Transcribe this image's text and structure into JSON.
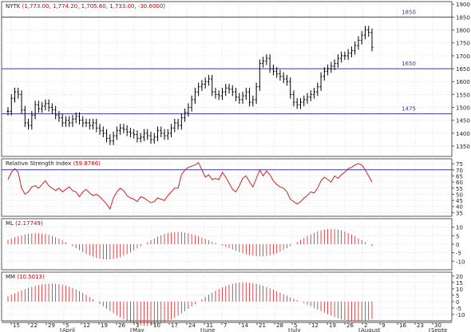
{
  "chart_data": [
    {
      "type": "bar",
      "panel": "price",
      "title_symbol": "NYTK",
      "title_values": "(1,773.00, 1,774.20, 1,705.60, 1,733.00, -30.6000)",
      "ylim": [
        1310,
        1910
      ],
      "yticks": [
        1350,
        1400,
        1450,
        1500,
        1550,
        1600,
        1650,
        1700,
        1750,
        1800,
        1850,
        1900
      ],
      "hlines": [
        {
          "value": 1850,
          "label": "1850"
        },
        {
          "value": 1650,
          "label": "1650"
        },
        {
          "value": 1475,
          "label": "1475"
        }
      ],
      "x": [
        0,
        1,
        2,
        3,
        4,
        5,
        6,
        7,
        8,
        9,
        10,
        11,
        12,
        13,
        14,
        15,
        16,
        17,
        18,
        19,
        20,
        21,
        22,
        23,
        24,
        25,
        26,
        27,
        28,
        29,
        30,
        31,
        32,
        33,
        34,
        35,
        36,
        37,
        38,
        39,
        40,
        41,
        42,
        43,
        44,
        45,
        46,
        47,
        48,
        49,
        50,
        51,
        52,
        53,
        54,
        55,
        56,
        57,
        58,
        59,
        60,
        61,
        62,
        63,
        64,
        65,
        66,
        67,
        68,
        69,
        70,
        71,
        72,
        73,
        74,
        75,
        76,
        77,
        78,
        79,
        80,
        81,
        82,
        83,
        84,
        85,
        86,
        87,
        88,
        89,
        90,
        91,
        92,
        93,
        94,
        95,
        96,
        97,
        98,
        99,
        100,
        101,
        102,
        103,
        104,
        105,
        106,
        107
      ],
      "close": [
        1485,
        1535,
        1560,
        1550,
        1490,
        1440,
        1430,
        1470,
        1510,
        1495,
        1505,
        1515,
        1500,
        1490,
        1470,
        1460,
        1440,
        1450,
        1440,
        1455,
        1465,
        1450,
        1440,
        1440,
        1430,
        1440,
        1420,
        1410,
        1400,
        1380,
        1370,
        1390,
        1410,
        1420,
        1415,
        1405,
        1400,
        1395,
        1380,
        1385,
        1400,
        1390,
        1375,
        1385,
        1410,
        1400,
        1390,
        1400,
        1420,
        1440,
        1430,
        1460,
        1480,
        1500,
        1530,
        1560,
        1580,
        1590,
        1600,
        1610,
        1560,
        1550,
        1545,
        1560,
        1575,
        1570,
        1560,
        1540,
        1530,
        1545,
        1560,
        1520,
        1530,
        1580,
        1670,
        1680,
        1690,
        1650,
        1640,
        1630,
        1620,
        1610,
        1600,
        1550,
        1520,
        1510,
        1520,
        1530,
        1540,
        1550,
        1560,
        1580,
        1620,
        1640,
        1650,
        1660,
        1670,
        1690,
        1700,
        1700,
        1710,
        1720,
        1740,
        1760,
        1780,
        1800,
        1790,
        1733
      ],
      "range": 40
    },
    {
      "type": "line",
      "panel": "rsi",
      "title": "Relative Strength Index",
      "value_label": "(59.8786)",
      "ylim": [
        32,
        79
      ],
      "yticks": [
        35,
        40,
        45,
        50,
        55,
        60,
        65,
        70,
        75
      ],
      "hline": 70,
      "values": [
        62,
        68,
        71,
        68,
        55,
        50,
        52,
        56,
        57,
        55,
        58,
        61,
        57,
        55,
        53,
        55,
        52,
        54,
        56,
        53,
        52,
        48,
        52,
        54,
        51,
        49,
        50,
        48,
        45,
        42,
        38,
        47,
        52,
        55,
        53,
        49,
        47,
        46,
        44,
        48,
        47,
        45,
        43,
        44,
        47,
        46,
        45,
        49,
        52,
        55,
        55,
        66,
        70,
        72,
        73,
        74,
        76,
        70,
        64,
        66,
        62,
        63,
        62,
        68,
        64,
        59,
        54,
        52,
        57,
        63,
        65,
        60,
        56,
        63,
        70,
        65,
        69,
        66,
        61,
        58,
        56,
        55,
        52,
        46,
        44,
        42,
        44,
        47,
        49,
        52,
        51,
        55,
        61,
        64,
        62,
        60,
        65,
        63,
        66,
        68,
        71,
        72,
        74,
        75,
        74,
        70,
        65,
        60
      ]
    },
    {
      "type": "bar",
      "panel": "ml",
      "title": "ML",
      "value_label": "(2.17749)",
      "ylim": [
        -15,
        15
      ],
      "yticks": [
        10,
        5,
        0,
        -5,
        -10
      ],
      "amplitude": 9,
      "period": 22
    },
    {
      "type": "bar",
      "panel": "mm",
      "title": "MM",
      "value_label": "(10.5013)",
      "ylim": [
        -15,
        23
      ],
      "yticks": [
        20,
        15,
        10,
        5,
        0,
        -5,
        -10
      ],
      "amplitude": 19,
      "period": 30
    }
  ],
  "xaxis": {
    "day_ticks": [
      "15",
      "22",
      "29",
      "5",
      "12",
      "19",
      "26",
      "3",
      "10",
      "17",
      "24",
      "31",
      "7",
      "14",
      "21",
      "28",
      "5",
      "12",
      "19",
      "26",
      "2",
      "9",
      "16",
      "23",
      "30"
    ],
    "month_labels": [
      "April",
      "May",
      "June",
      "July",
      "August",
      "Septe"
    ]
  },
  "colors": {
    "bars": "#000000",
    "rsi_line": "#cc2222",
    "hist": "#cc2222",
    "hline": "#3a3a9a",
    "title_value": "#cc0000",
    "grid": "#cccccc"
  }
}
